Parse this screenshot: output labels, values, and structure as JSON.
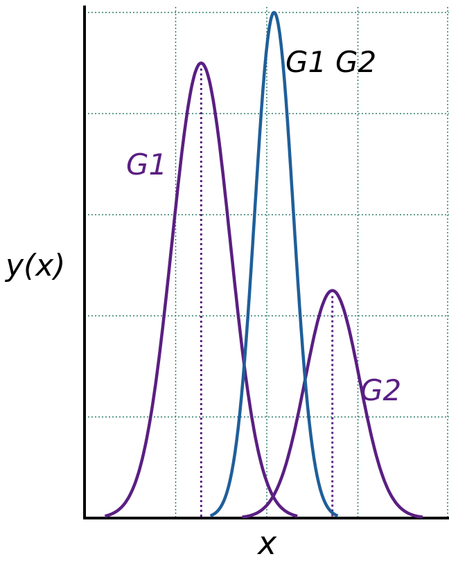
{
  "chart_data": {
    "type": "line",
    "xlabel": "x",
    "ylabel": "y(x)",
    "grid": true,
    "xlim": [
      0,
      100
    ],
    "ylim": [
      0,
      100
    ],
    "series": [
      {
        "name": "G1",
        "mu": 32,
        "sigma": 8.0,
        "amp": 90,
        "color": "#5a1f82",
        "dotted_peak_line": true,
        "label_pos": "left of peak"
      },
      {
        "name": "G2",
        "mu": 68,
        "sigma": 7.5,
        "amp": 45,
        "color": "#5a1f82",
        "dotted_peak_line": true,
        "label_pos": "right of peak"
      },
      {
        "name": "G1G2",
        "mu": 52,
        "sigma": 5.3,
        "amp": 100,
        "color": "#1f5f9a",
        "dotted_peak_line": false,
        "label_pos": "right of peak"
      }
    ],
    "labels": {
      "g1": "G1",
      "g2": "G2",
      "g1g2_a": "G1",
      "g1g2_b": "G2"
    },
    "colors": {
      "purple": "#5a1f82",
      "blue": "#1f5f9a",
      "grid": "#2e7d6b",
      "axis": "#000000"
    }
  }
}
